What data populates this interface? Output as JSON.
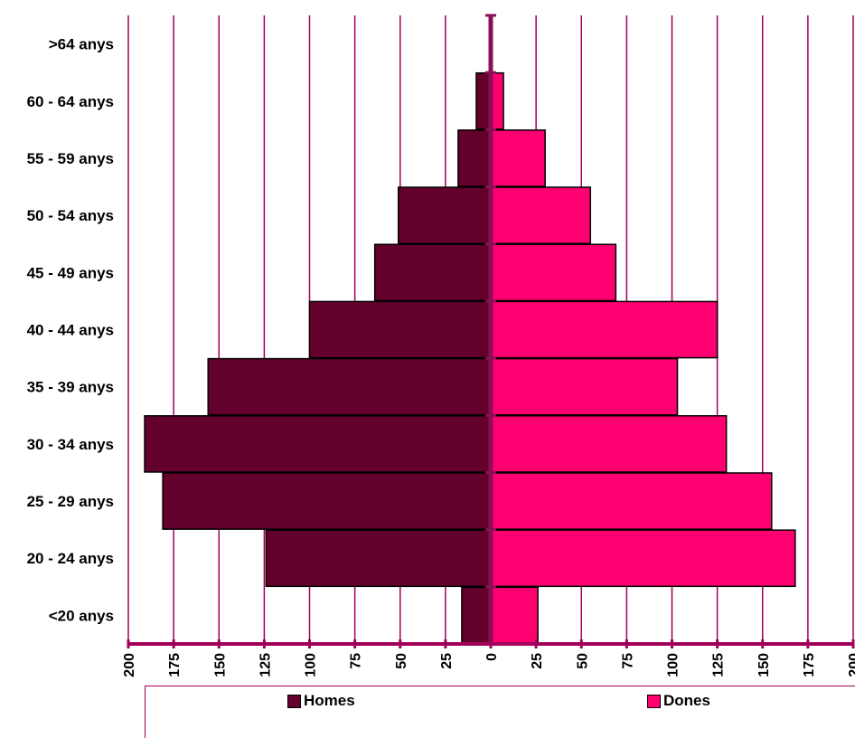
{
  "chart_data": {
    "type": "bar",
    "orientation": "horizontal-population-pyramid",
    "categories": [
      "<20 anys",
      "20 - 24 anys",
      "25 - 29 anys",
      "30 - 34 anys",
      "35 - 39 anys",
      "40 - 44 anys",
      "45 - 49 anys",
      "50 - 54 anys",
      "55 - 59 anys",
      "60 - 64 anys",
      ">64 anys"
    ],
    "series": [
      {
        "name": "Homes",
        "color": "#64002c",
        "values": [
          16,
          124,
          181,
          191,
          156,
          100,
          64,
          51,
          18,
          8,
          0
        ]
      },
      {
        "name": "Dones",
        "color": "#ff0070",
        "values": [
          26,
          168,
          155,
          130,
          103,
          125,
          69,
          55,
          30,
          7,
          0
        ]
      }
    ],
    "xlim": [
      -200,
      200
    ],
    "tick_labels": [
      "200",
      "175",
      "150",
      "125",
      "100",
      "75",
      "50",
      "25",
      "0",
      "25",
      "50",
      "75",
      "100",
      "125",
      "150",
      "175",
      "200"
    ],
    "grid": true,
    "legend_position": "bottom",
    "title": "",
    "xlabel": "",
    "ylabel": ""
  }
}
